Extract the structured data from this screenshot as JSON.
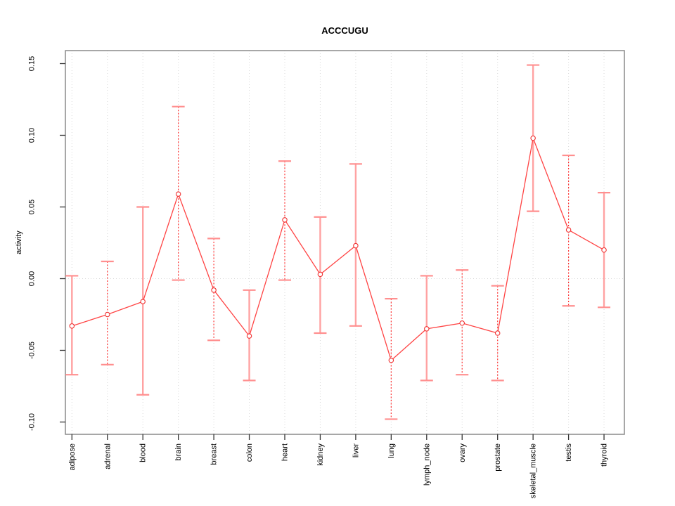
{
  "chart_data": {
    "type": "line",
    "title": "ACCCUGU",
    "ylabel": "activity",
    "xlabel": "",
    "ylim": [
      -0.108,
      0.159
    ],
    "ytick_labels": [
      "0.15",
      "0.10",
      "0.05",
      "0.00",
      "-0.05",
      "-0.10"
    ],
    "ytick_values": [
      0.15,
      0.1,
      0.05,
      0.0,
      -0.05,
      -0.1
    ],
    "grid": "light dotted vertical line at each category; dotted horizontal line at 0.00",
    "legend": null,
    "marker": "open-circle",
    "categories": [
      "adipose",
      "adrenal",
      "blood",
      "brain",
      "breast",
      "colon",
      "heart",
      "kidney",
      "liver",
      "lung",
      "lymph_node",
      "ovary",
      "prostate",
      "skeletal_muscle",
      "testis",
      "thyroid"
    ],
    "series": [
      {
        "name": "activity",
        "values": [
          -0.033,
          -0.025,
          -0.016,
          0.059,
          -0.008,
          -0.04,
          0.041,
          0.003,
          0.023,
          -0.057,
          -0.035,
          -0.031,
          -0.038,
          0.098,
          0.034,
          0.02
        ],
        "ci_upper": [
          0.002,
          0.012,
          0.05,
          0.12,
          0.028,
          -0.008,
          0.082,
          0.043,
          0.08,
          -0.014,
          0.002,
          0.006,
          -0.005,
          0.149,
          0.086,
          0.06
        ],
        "ci_lower": [
          -0.067,
          -0.06,
          -0.081,
          -0.001,
          -0.043,
          -0.071,
          -0.001,
          -0.038,
          -0.033,
          -0.098,
          -0.071,
          -0.067,
          -0.071,
          0.047,
          -0.019,
          -0.02
        ],
        "bar_styles": [
          "solid",
          "dotted",
          "solid",
          "dotted",
          "dotted",
          "solid",
          "dotted",
          "solid",
          "solid",
          "dotted",
          "solid",
          "dotted",
          "dotted",
          "solid",
          "dotted",
          "solid"
        ]
      }
    ],
    "colors": {
      "series_line": "#ff4444",
      "marker_stroke": "#f03030",
      "errorbar_solid": "#ffa2a2",
      "errorbar_dotted": "#ff3333",
      "errorbar_cap": "#ff8f8f",
      "frame": "#8a8a8a",
      "grid": "#d8d8d8",
      "tick": "#333333",
      "text": "#000000",
      "background": "#ffffff"
    }
  }
}
